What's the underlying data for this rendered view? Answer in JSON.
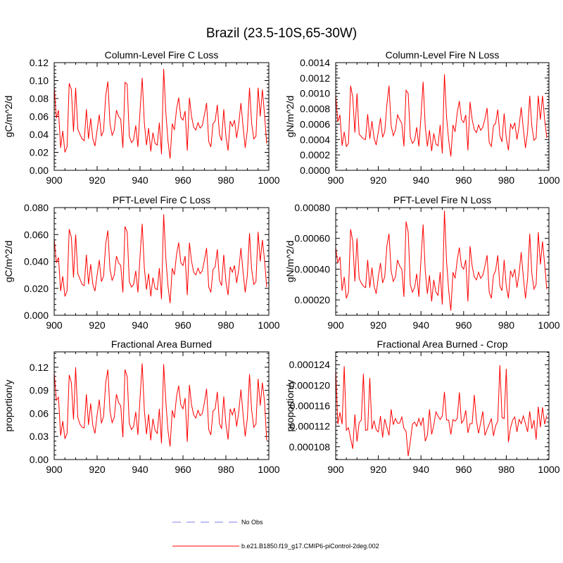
{
  "figure": {
    "title": "Brazil (23.5-10S,65-30W)"
  },
  "legend": {
    "placement": "bottom-center",
    "entries": [
      {
        "label": "No Obs",
        "color": "#9999ee",
        "style": "dashed"
      },
      {
        "label": "b.e21.B1850.f19_g17.CMIP6-piControl-2deg.002",
        "color": "#ff0000",
        "style": "solid"
      }
    ]
  },
  "chart_data": [
    {
      "type": "line",
      "title": "Column-Level Fire C Loss",
      "xlabel": "",
      "ylabel": "gC/m^2/d",
      "xlim": [
        900,
        1000
      ],
      "ylim": [
        0,
        0.12
      ],
      "xticks": [
        900,
        920,
        940,
        960,
        980,
        1000
      ],
      "yticks": [
        0.0,
        0.02,
        0.04,
        0.06,
        0.08,
        0.1,
        0.12
      ],
      "ytick_labels": [
        "0.00",
        "0.02",
        "0.04",
        "0.06",
        "0.08",
        "0.10",
        "0.12"
      ],
      "series": [
        {
          "name": "b.e21.B1850.f19_g17.CMIP6-piControl-2deg.002",
          "color": "#ff0000",
          "x_start": 900,
          "x_step": 1,
          "values": [
            0.093,
            0.058,
            0.067,
            0.025,
            0.044,
            0.02,
            0.026,
            0.097,
            0.09,
            0.043,
            0.092,
            0.046,
            0.04,
            0.035,
            0.033,
            0.068,
            0.035,
            0.058,
            0.035,
            0.027,
            0.045,
            0.062,
            0.038,
            0.044,
            0.083,
            0.099,
            0.052,
            0.039,
            0.045,
            0.067,
            0.06,
            0.057,
            0.025,
            0.098,
            0.096,
            0.038,
            0.031,
            0.034,
            0.05,
            0.026,
            0.066,
            0.103,
            0.053,
            0.028,
            0.047,
            0.021,
            0.042,
            0.03,
            0.028,
            0.053,
            0.018,
            0.113,
            0.065,
            0.033,
            0.013,
            0.052,
            0.045,
            0.068,
            0.081,
            0.059,
            0.056,
            0.066,
            0.022,
            0.081,
            0.06,
            0.048,
            0.045,
            0.053,
            0.047,
            0.05,
            0.062,
            0.075,
            0.032,
            0.026,
            0.052,
            0.055,
            0.073,
            0.04,
            0.033,
            0.068,
            0.038,
            0.022,
            0.055,
            0.049,
            0.056,
            0.036,
            0.052,
            0.075,
            0.049,
            0.025,
            0.045,
            0.092,
            0.052,
            0.035,
            0.038,
            0.092,
            0.06,
            0.09,
            0.062,
            0.03
          ]
        }
      ]
    },
    {
      "type": "line",
      "title": "Column-Level Fire N Loss",
      "xlabel": "",
      "ylabel": "gN/m^2/d",
      "xlim": [
        900,
        1000
      ],
      "ylim": [
        0,
        0.0014
      ],
      "xticks": [
        900,
        920,
        940,
        960,
        980,
        1000
      ],
      "yticks": [
        0,
        0.0002,
        0.0004,
        0.0006,
        0.0008,
        0.001,
        0.0012,
        0.0014
      ],
      "ytick_labels": [
        "0.0000",
        "0.0002",
        "0.0004",
        "0.0006",
        "0.0008",
        "0.0010",
        "0.0012",
        "0.0014"
      ],
      "series": [
        {
          "name": "b.e21.B1850.f19_g17.CMIP6-piControl-2deg.002",
          "color": "#ff0000",
          "x_start": 900,
          "x_step": 1,
          "values": [
            0.00098,
            0.00063,
            0.00072,
            0.00032,
            0.0005,
            0.00031,
            0.00035,
            0.0011,
            0.00095,
            0.00049,
            0.001,
            0.00047,
            0.00044,
            0.00041,
            0.0004,
            0.00073,
            0.00041,
            0.00064,
            0.00042,
            0.00033,
            0.0005,
            0.00068,
            0.00043,
            0.0005,
            0.00085,
            0.0011,
            0.00058,
            0.00045,
            0.00052,
            0.00072,
            0.00066,
            0.00061,
            0.00031,
            0.00104,
            0.001,
            0.00043,
            0.00035,
            0.00039,
            0.00056,
            0.00031,
            0.0007,
            0.00115,
            0.00057,
            0.00031,
            0.00052,
            0.00025,
            0.00048,
            0.00034,
            0.00032,
            0.00059,
            0.00022,
            0.00125,
            0.00069,
            0.00039,
            0.00018,
            0.00059,
            0.0005,
            0.00075,
            0.0009,
            0.00066,
            0.00062,
            0.00072,
            0.00026,
            0.00089,
            0.00066,
            0.00053,
            0.00049,
            0.00059,
            0.00052,
            0.00056,
            0.00067,
            0.00081,
            0.00036,
            0.00031,
            0.00058,
            0.00061,
            0.00079,
            0.00045,
            0.00037,
            0.00074,
            0.00042,
            0.00026,
            0.0006,
            0.00054,
            0.00062,
            0.0004,
            0.00057,
            0.00082,
            0.00054,
            0.00029,
            0.0005,
            0.00097,
            0.00057,
            0.00039,
            0.00042,
            0.00097,
            0.00066,
            0.00097,
            0.00066,
            0.00042
          ]
        }
      ]
    },
    {
      "type": "line",
      "title": "PFT-Level Fire C Loss",
      "xlabel": "",
      "ylabel": "gC/m^2/d",
      "xlim": [
        900,
        1000
      ],
      "ylim": [
        0,
        0.08
      ],
      "xticks": [
        900,
        920,
        940,
        960,
        980,
        1000
      ],
      "yticks": [
        0,
        0.02,
        0.04,
        0.06,
        0.08
      ],
      "ytick_labels": [
        "0.000",
        "0.020",
        "0.040",
        "0.060",
        "0.080"
      ],
      "series": [
        {
          "name": "b.e21.B1850.f19_g17.CMIP6-piControl-2deg.002",
          "color": "#ff0000",
          "x_start": 900,
          "x_step": 1,
          "values": [
            0.057,
            0.039,
            0.043,
            0.018,
            0.029,
            0.014,
            0.018,
            0.064,
            0.058,
            0.028,
            0.06,
            0.031,
            0.027,
            0.023,
            0.022,
            0.045,
            0.023,
            0.038,
            0.023,
            0.018,
            0.03,
            0.041,
            0.025,
            0.029,
            0.053,
            0.063,
            0.034,
            0.026,
            0.03,
            0.044,
            0.039,
            0.037,
            0.017,
            0.066,
            0.062,
            0.025,
            0.021,
            0.023,
            0.033,
            0.017,
            0.044,
            0.068,
            0.035,
            0.019,
            0.031,
            0.014,
            0.028,
            0.02,
            0.019,
            0.035,
            0.012,
            0.075,
            0.043,
            0.022,
            0.009,
            0.035,
            0.03,
            0.045,
            0.054,
            0.039,
            0.037,
            0.044,
            0.015,
            0.054,
            0.04,
            0.032,
            0.03,
            0.035,
            0.031,
            0.033,
            0.041,
            0.05,
            0.021,
            0.017,
            0.034,
            0.036,
            0.049,
            0.026,
            0.022,
            0.045,
            0.025,
            0.015,
            0.036,
            0.032,
            0.037,
            0.024,
            0.034,
            0.05,
            0.032,
            0.017,
            0.03,
            0.061,
            0.034,
            0.023,
            0.025,
            0.062,
            0.04,
            0.056,
            0.041,
            0.021
          ]
        }
      ]
    },
    {
      "type": "line",
      "title": "PFT-Level Fire N Loss",
      "xlabel": "",
      "ylabel": "gN/m^2/d",
      "xlim": [
        900,
        1000
      ],
      "ylim": [
        0.0001,
        0.0008
      ],
      "xticks": [
        900,
        920,
        940,
        960,
        980,
        1000
      ],
      "yticks": [
        0.0002,
        0.0004,
        0.0006,
        0.0008
      ],
      "ytick_labels": [
        "0.00020",
        "0.00040",
        "0.00060",
        "0.00080"
      ],
      "series": [
        {
          "name": "b.e21.B1850.f19_g17.CMIP6-piControl-2deg.002",
          "color": "#ff0000",
          "x_start": 900,
          "x_step": 1,
          "values": [
            0.00054,
            0.00044,
            0.00048,
            0.00026,
            0.00035,
            0.00021,
            0.00025,
            0.00066,
            0.00058,
            0.00032,
            0.0006,
            0.00034,
            0.00031,
            0.00029,
            0.00028,
            0.00046,
            0.00028,
            0.00041,
            0.00029,
            0.00024,
            0.00035,
            0.00044,
            0.00031,
            0.00035,
            0.00055,
            0.00063,
            0.00039,
            0.00032,
            0.00035,
            0.00046,
            0.00042,
            0.0004,
            0.00022,
            0.00071,
            0.00064,
            0.0003,
            0.00025,
            0.00028,
            0.00037,
            0.00022,
            0.00046,
            0.00069,
            0.00039,
            0.00024,
            0.00036,
            0.00019,
            0.00033,
            0.00025,
            0.00023,
            0.00038,
            0.00017,
            0.00078,
            0.00045,
            0.00026,
            0.00013,
            0.00038,
            0.00034,
            0.00046,
            0.00054,
            0.00042,
            0.0004,
            0.00046,
            0.00019,
            0.00055,
            0.00042,
            0.00035,
            0.00033,
            0.00038,
            0.00034,
            0.00036,
            0.00042,
            0.00049,
            0.00025,
            0.00021,
            0.00036,
            0.00039,
            0.00049,
            0.00029,
            0.00026,
            0.00046,
            0.00029,
            0.00021,
            0.00039,
            0.00035,
            0.0004,
            0.00028,
            0.00037,
            0.00051,
            0.00035,
            0.00021,
            0.00034,
            0.00063,
            0.00037,
            0.00027,
            0.0003,
            0.00064,
            0.00043,
            0.00058,
            0.00043,
            0.00027
          ]
        }
      ]
    },
    {
      "type": "line",
      "title": "Fractional Area Burned",
      "xlabel": "",
      "ylabel": "proportion/y",
      "xlim": [
        900,
        1000
      ],
      "ylim": [
        0,
        0.14
      ],
      "xticks": [
        900,
        920,
        940,
        960,
        980,
        1000
      ],
      "yticks": [
        0,
        0.03,
        0.06,
        0.09,
        0.12
      ],
      "ytick_labels": [
        "0.00",
        "0.03",
        "0.06",
        "0.09",
        "0.12"
      ],
      "series": [
        {
          "name": "b.e21.B1850.f19_g17.CMIP6-piControl-2deg.002",
          "color": "#ff0000",
          "x_start": 900,
          "x_step": 1,
          "values": [
            0.113,
            0.077,
            0.081,
            0.031,
            0.05,
            0.027,
            0.034,
            0.11,
            0.1,
            0.052,
            0.12,
            0.055,
            0.046,
            0.042,
            0.041,
            0.085,
            0.045,
            0.073,
            0.044,
            0.034,
            0.058,
            0.078,
            0.047,
            0.056,
            0.1,
            0.117,
            0.063,
            0.048,
            0.055,
            0.085,
            0.074,
            0.07,
            0.029,
            0.117,
            0.108,
            0.047,
            0.039,
            0.043,
            0.062,
            0.032,
            0.08,
            0.125,
            0.064,
            0.033,
            0.059,
            0.025,
            0.053,
            0.038,
            0.034,
            0.066,
            0.021,
            0.124,
            0.076,
            0.038,
            0.017,
            0.064,
            0.054,
            0.082,
            0.096,
            0.071,
            0.066,
            0.08,
            0.023,
            0.097,
            0.071,
            0.058,
            0.054,
            0.064,
            0.057,
            0.06,
            0.074,
            0.092,
            0.039,
            0.032,
            0.063,
            0.066,
            0.088,
            0.047,
            0.04,
            0.082,
            0.046,
            0.026,
            0.066,
            0.058,
            0.067,
            0.043,
            0.062,
            0.091,
            0.059,
            0.03,
            0.054,
            0.111,
            0.064,
            0.042,
            0.046,
            0.105,
            0.07,
            0.1,
            0.075,
            0.025
          ]
        }
      ]
    },
    {
      "type": "line",
      "title": "Fractional Area Burned - Crop",
      "xlabel": "",
      "ylabel": "proportion/y",
      "xlim": [
        900,
        1000
      ],
      "ylim": [
        0.0001055,
        0.0001265
      ],
      "xticks": [
        900,
        920,
        940,
        960,
        980,
        1000
      ],
      "yticks": [
        0.000108,
        0.000112,
        0.000116,
        0.00012,
        0.000124
      ],
      "ytick_labels": [
        "0.000108",
        "0.000112",
        "0.000116",
        "0.000120",
        "0.000124"
      ],
      "series": [
        {
          "name": "b.e21.B1850.f19_g17.CMIP6-piControl-2deg.002",
          "color": "#ff0000",
          "x_start": 900,
          "x_step": 1,
          "values": [
            0.0001232,
            0.0001124,
            0.0001147,
            0.0001124,
            0.0001237,
            0.0001112,
            0.0001117,
            0.0001096,
            0.0001076,
            0.0001143,
            0.000109,
            0.0001127,
            0.0001132,
            0.0001222,
            0.0001112,
            0.0001113,
            0.0001214,
            0.0001114,
            0.0001131,
            0.0001113,
            0.0001109,
            0.000114,
            0.0001098,
            0.0001134,
            0.0001118,
            0.0001102,
            0.0001153,
            0.0001123,
            0.0001135,
            0.0001126,
            0.0001126,
            0.0001138,
            0.0001116,
            0.000111,
            0.0001062,
            0.000109,
            0.0001124,
            0.0001128,
            0.000112,
            0.0001135,
            0.0001122,
            0.0001137,
            0.0001091,
            0.0001102,
            0.0001153,
            0.0001104,
            0.0001122,
            0.0001148,
            0.000114,
            0.0001133,
            0.000114,
            0.0001187,
            0.0001132,
            0.0001132,
            0.0001104,
            0.0001133,
            0.000113,
            0.0001135,
            0.0001186,
            0.0001126,
            0.0001132,
            0.0001151,
            0.0001107,
            0.0001125,
            0.0001125,
            0.0001181,
            0.0001131,
            0.0001106,
            0.0001127,
            0.0001149,
            0.0001102,
            0.0001114,
            0.0001124,
            0.0001135,
            0.0001101,
            0.0001121,
            0.000113,
            0.0001239,
            0.0001137,
            0.0001135,
            0.0001232,
            0.0001089,
            0.0001117,
            0.0001132,
            0.0001138,
            0.0001109,
            0.0001133,
            0.0001125,
            0.000114,
            0.0001125,
            0.0001109,
            0.0001149,
            0.0001115,
            0.0001132,
            0.0001094,
            0.0001158,
            0.0001118,
            0.0001157,
            0.0001124,
            0.0001141
          ]
        }
      ]
    }
  ]
}
